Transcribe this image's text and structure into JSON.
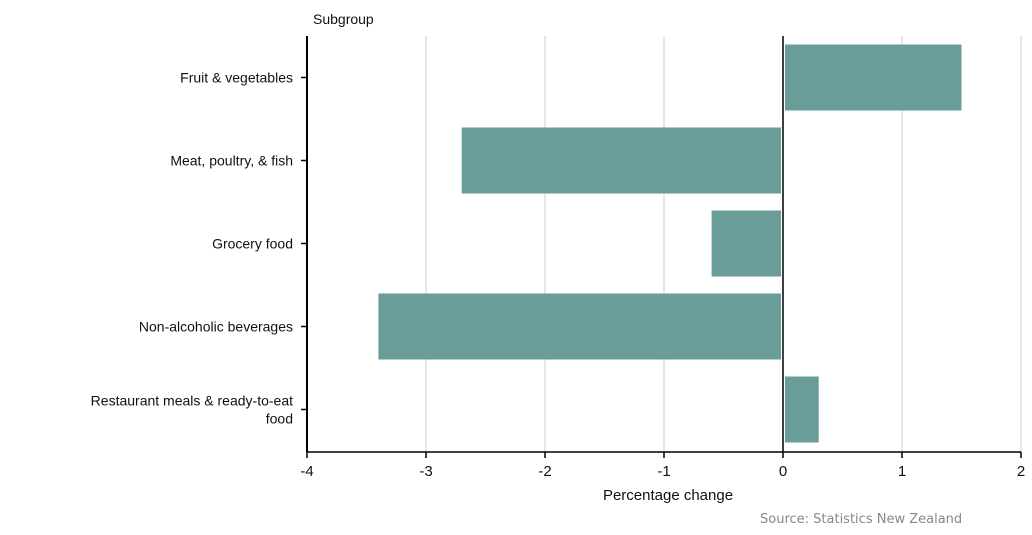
{
  "chart_data": {
    "type": "bar",
    "orientation": "horizontal",
    "y_axis_title": "Subgroup",
    "xlabel": "Percentage change",
    "categories": [
      "Fruit & vegetables",
      "Meat, poultry, & fish",
      "Grocery food",
      "Non-alcoholic beverages",
      "Restaurant meals & ready-to-eat food"
    ],
    "category_lines": [
      [
        "Fruit & vegetables"
      ],
      [
        "Meat, poultry, & fish"
      ],
      [
        "Grocery food"
      ],
      [
        "Non-alcoholic beverages"
      ],
      [
        "Restaurant meals & ready-to-eat",
        "food"
      ]
    ],
    "values": [
      1.5,
      -2.7,
      -0.6,
      -3.4,
      0.3
    ],
    "xlim": [
      -4,
      2
    ],
    "xticks": [
      "-4",
      "-3",
      "-2",
      "-1",
      "0",
      "1",
      "2"
    ],
    "grid": true,
    "legend": "none",
    "colors": {
      "bar": "#6a9c9a",
      "grid": "#cccccc",
      "axis": "#000000"
    }
  },
  "source_note": "Source: Statistics New Zealand"
}
